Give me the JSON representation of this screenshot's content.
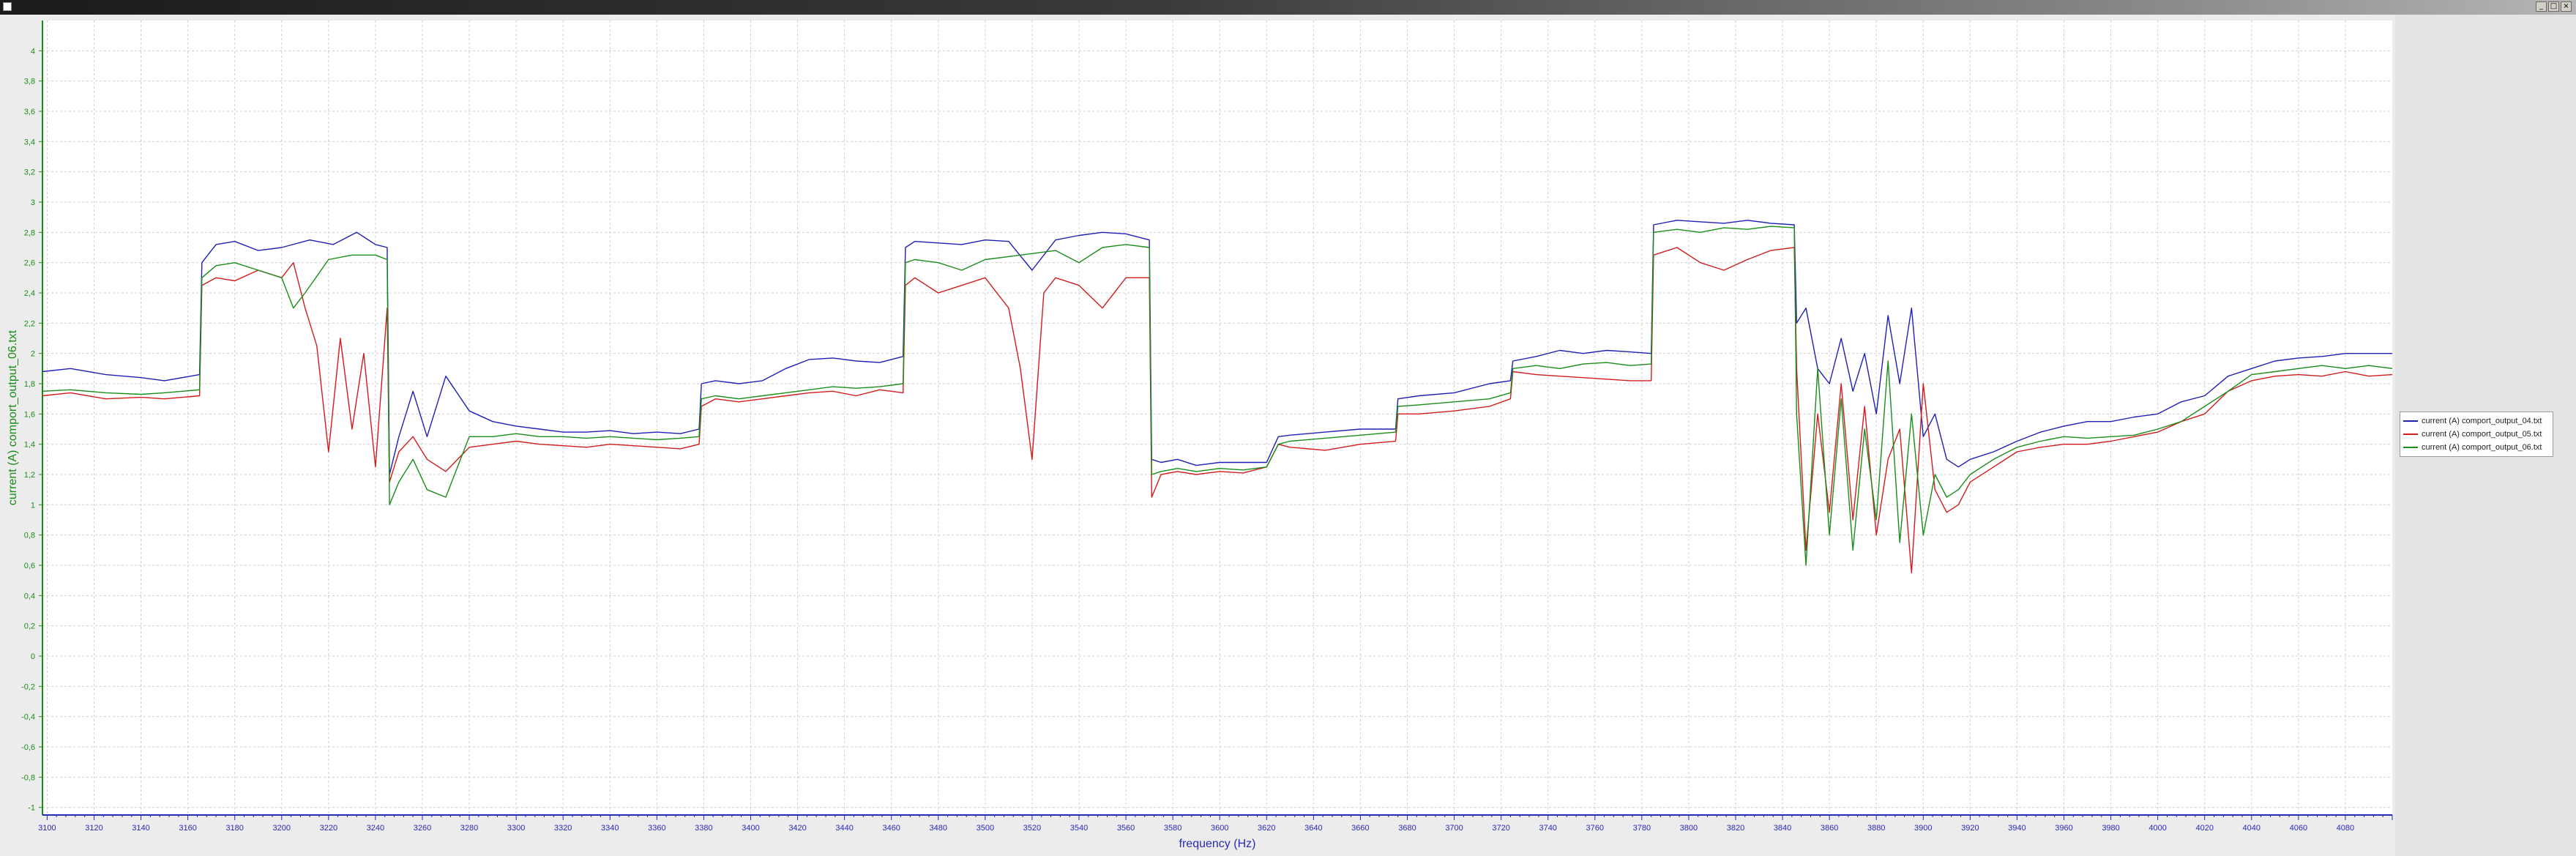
{
  "window": {
    "controls": {
      "minimize": "_",
      "maximize": "□",
      "close": "×"
    }
  },
  "chart_data": {
    "type": "line",
    "title": "",
    "xlabel": "frequency (Hz)",
    "ylabel": "current (A) comport_output_06.txt",
    "xlim": [
      3098,
      4100
    ],
    "ylim": [
      -1.05,
      4.2
    ],
    "xticks": [
      3100,
      3120,
      3140,
      3160,
      3180,
      3200,
      3220,
      3240,
      3260,
      3280,
      3300,
      3320,
      3340,
      3360,
      3380,
      3400,
      3420,
      3440,
      3460,
      3480,
      3500,
      3520,
      3540,
      3560,
      3580,
      3600,
      3620,
      3640,
      3660,
      3680,
      3700,
      3720,
      3740,
      3760,
      3780,
      3800,
      3820,
      3840,
      3860,
      3880,
      3900,
      3920,
      3940,
      3960,
      3980,
      4000,
      4020,
      4040,
      4060,
      4080
    ],
    "yticks": [
      -1,
      -0.8,
      -0.6,
      -0.4,
      -0.2,
      0,
      0.2,
      0.4,
      0.6,
      0.8,
      1,
      1.2,
      1.4,
      1.6,
      1.8,
      2,
      2.2,
      2.4,
      2.6,
      2.8,
      3,
      3.2,
      3.4,
      3.6,
      3.8,
      4
    ],
    "ytick_labels": [
      "-1",
      "-0,8",
      "-0,6",
      "-0,4",
      "-0,2",
      "0",
      "0,2",
      "0,4",
      "0,6",
      "0,8",
      "1",
      "1,2",
      "1,4",
      "1,6",
      "1,8",
      "2",
      "2,2",
      "2,4",
      "2,6",
      "2,8",
      "3",
      "3,2",
      "3,4",
      "3,6",
      "3,8",
      "4"
    ],
    "grid": true,
    "legend_position": "right",
    "series": [
      {
        "name": "current (A) comport_output_04.txt",
        "color": "#1f1fb4",
        "x": [
          3098,
          3110,
          3125,
          3140,
          3150,
          3165,
          3166,
          3172,
          3180,
          3190,
          3200,
          3212,
          3222,
          3232,
          3240,
          3245,
          3246,
          3250,
          3256,
          3262,
          3270,
          3280,
          3290,
          3300,
          3310,
          3320,
          3330,
          3340,
          3350,
          3360,
          3370,
          3378,
          3379,
          3385,
          3395,
          3405,
          3415,
          3425,
          3435,
          3445,
          3455,
          3465,
          3466,
          3470,
          3480,
          3490,
          3500,
          3510,
          3520,
          3530,
          3540,
          3550,
          3560,
          3570,
          3571,
          3575,
          3582,
          3590,
          3600,
          3610,
          3620,
          3625,
          3630,
          3645,
          3660,
          3675,
          3676,
          3685,
          3700,
          3715,
          3724,
          3725,
          3735,
          3745,
          3755,
          3765,
          3775,
          3784,
          3785,
          3795,
          3805,
          3815,
          3825,
          3835,
          3845,
          3846,
          3850,
          3855,
          3860,
          3865,
          3870,
          3875,
          3880,
          3885,
          3890,
          3895,
          3900,
          3905,
          3910,
          3915,
          3920,
          3930,
          3940,
          3950,
          3960,
          3970,
          3980,
          3990,
          4000,
          4010,
          4020,
          4030,
          4040,
          4050,
          4060,
          4070,
          4080,
          4090,
          4100
        ],
        "y": [
          1.88,
          1.9,
          1.86,
          1.84,
          1.82,
          1.86,
          2.6,
          2.72,
          2.74,
          2.68,
          2.7,
          2.75,
          2.72,
          2.8,
          2.72,
          2.7,
          1.2,
          1.45,
          1.75,
          1.45,
          1.85,
          1.62,
          1.55,
          1.52,
          1.5,
          1.48,
          1.48,
          1.49,
          1.47,
          1.48,
          1.47,
          1.5,
          1.8,
          1.82,
          1.8,
          1.82,
          1.9,
          1.96,
          1.97,
          1.95,
          1.94,
          1.98,
          2.7,
          2.74,
          2.73,
          2.72,
          2.75,
          2.74,
          2.55,
          2.75,
          2.78,
          2.8,
          2.79,
          2.75,
          1.3,
          1.28,
          1.3,
          1.26,
          1.28,
          1.28,
          1.28,
          1.45,
          1.46,
          1.48,
          1.5,
          1.5,
          1.7,
          1.72,
          1.74,
          1.8,
          1.82,
          1.95,
          1.98,
          2.02,
          2.0,
          2.02,
          2.01,
          2.0,
          2.85,
          2.88,
          2.87,
          2.86,
          2.88,
          2.86,
          2.85,
          2.2,
          2.3,
          1.9,
          1.8,
          2.1,
          1.75,
          2.0,
          1.6,
          2.25,
          1.8,
          2.3,
          1.45,
          1.6,
          1.3,
          1.25,
          1.3,
          1.35,
          1.42,
          1.48,
          1.52,
          1.55,
          1.55,
          1.58,
          1.6,
          1.68,
          1.72,
          1.85,
          1.9,
          1.95,
          1.97,
          1.98,
          2.0,
          2.0,
          2.0
        ]
      },
      {
        "name": "current (A) comport_output_05.txt",
        "color": "#d01c1c",
        "x": [
          3098,
          3110,
          3125,
          3140,
          3150,
          3165,
          3166,
          3172,
          3180,
          3190,
          3200,
          3205,
          3210,
          3215,
          3220,
          3225,
          3230,
          3235,
          3240,
          3245,
          3246,
          3250,
          3256,
          3262,
          3270,
          3280,
          3290,
          3300,
          3310,
          3320,
          3330,
          3340,
          3350,
          3360,
          3370,
          3378,
          3379,
          3385,
          3395,
          3405,
          3415,
          3425,
          3435,
          3445,
          3455,
          3465,
          3466,
          3470,
          3480,
          3490,
          3500,
          3510,
          3515,
          3520,
          3525,
          3530,
          3540,
          3550,
          3560,
          3570,
          3571,
          3575,
          3582,
          3590,
          3600,
          3610,
          3620,
          3625,
          3630,
          3645,
          3660,
          3675,
          3676,
          3685,
          3700,
          3715,
          3724,
          3725,
          3735,
          3745,
          3755,
          3765,
          3775,
          3784,
          3785,
          3795,
          3805,
          3815,
          3825,
          3835,
          3845,
          3846,
          3850,
          3855,
          3860,
          3865,
          3870,
          3875,
          3880,
          3885,
          3890,
          3895,
          3900,
          3905,
          3910,
          3915,
          3920,
          3930,
          3940,
          3950,
          3960,
          3970,
          3980,
          3990,
          4000,
          4010,
          4020,
          4030,
          4040,
          4050,
          4060,
          4070,
          4080,
          4090,
          4100
        ],
        "y": [
          1.72,
          1.74,
          1.7,
          1.71,
          1.7,
          1.72,
          2.45,
          2.5,
          2.48,
          2.55,
          2.5,
          2.6,
          2.3,
          2.05,
          1.35,
          2.1,
          1.5,
          2.0,
          1.25,
          2.3,
          1.15,
          1.35,
          1.45,
          1.3,
          1.22,
          1.38,
          1.4,
          1.42,
          1.4,
          1.39,
          1.38,
          1.4,
          1.39,
          1.38,
          1.37,
          1.4,
          1.65,
          1.7,
          1.68,
          1.7,
          1.72,
          1.74,
          1.75,
          1.72,
          1.76,
          1.74,
          2.45,
          2.5,
          2.4,
          2.45,
          2.5,
          2.3,
          1.9,
          1.3,
          2.4,
          2.5,
          2.45,
          2.3,
          2.5,
          2.5,
          1.05,
          1.2,
          1.22,
          1.2,
          1.22,
          1.21,
          1.25,
          1.4,
          1.38,
          1.36,
          1.4,
          1.42,
          1.6,
          1.6,
          1.62,
          1.65,
          1.7,
          1.88,
          1.86,
          1.85,
          1.84,
          1.83,
          1.82,
          1.82,
          2.65,
          2.7,
          2.6,
          2.55,
          2.62,
          2.68,
          2.7,
          1.9,
          0.7,
          1.6,
          0.95,
          1.8,
          0.9,
          1.65,
          0.8,
          1.3,
          1.5,
          0.55,
          1.8,
          1.1,
          0.95,
          1.0,
          1.15,
          1.25,
          1.35,
          1.38,
          1.4,
          1.4,
          1.42,
          1.45,
          1.48,
          1.55,
          1.6,
          1.75,
          1.82,
          1.85,
          1.86,
          1.85,
          1.88,
          1.85,
          1.86
        ]
      },
      {
        "name": "current (A) comport_output_06.txt",
        "color": "#1a8c1a",
        "x": [
          3098,
          3110,
          3125,
          3140,
          3150,
          3165,
          3166,
          3172,
          3180,
          3190,
          3200,
          3205,
          3210,
          3220,
          3230,
          3240,
          3245,
          3246,
          3250,
          3256,
          3262,
          3270,
          3280,
          3290,
          3300,
          3310,
          3320,
          3330,
          3340,
          3350,
          3360,
          3370,
          3378,
          3379,
          3385,
          3395,
          3405,
          3415,
          3425,
          3435,
          3445,
          3455,
          3465,
          3466,
          3470,
          3480,
          3490,
          3500,
          3510,
          3520,
          3530,
          3540,
          3550,
          3560,
          3570,
          3571,
          3575,
          3582,
          3590,
          3600,
          3610,
          3620,
          3625,
          3630,
          3645,
          3660,
          3675,
          3676,
          3685,
          3700,
          3715,
          3724,
          3725,
          3735,
          3745,
          3755,
          3765,
          3775,
          3784,
          3785,
          3795,
          3805,
          3815,
          3825,
          3835,
          3845,
          3846,
          3850,
          3855,
          3860,
          3865,
          3870,
          3875,
          3880,
          3885,
          3890,
          3895,
          3900,
          3905,
          3910,
          3915,
          3920,
          3930,
          3940,
          3950,
          3960,
          3970,
          3980,
          3990,
          4000,
          4010,
          4020,
          4030,
          4040,
          4050,
          4060,
          4070,
          4080,
          4090,
          4100
        ],
        "y": [
          1.75,
          1.76,
          1.74,
          1.73,
          1.74,
          1.76,
          2.5,
          2.58,
          2.6,
          2.55,
          2.5,
          2.3,
          2.4,
          2.62,
          2.65,
          2.65,
          2.62,
          1.0,
          1.15,
          1.3,
          1.1,
          1.05,
          1.45,
          1.45,
          1.47,
          1.45,
          1.45,
          1.44,
          1.45,
          1.44,
          1.43,
          1.44,
          1.45,
          1.7,
          1.72,
          1.7,
          1.72,
          1.74,
          1.76,
          1.78,
          1.77,
          1.78,
          1.8,
          2.6,
          2.62,
          2.6,
          2.55,
          2.62,
          2.64,
          2.66,
          2.68,
          2.6,
          2.7,
          2.72,
          2.7,
          1.2,
          1.22,
          1.24,
          1.22,
          1.24,
          1.23,
          1.25,
          1.4,
          1.42,
          1.44,
          1.46,
          1.48,
          1.65,
          1.66,
          1.68,
          1.7,
          1.74,
          1.9,
          1.92,
          1.9,
          1.93,
          1.94,
          1.92,
          1.93,
          2.8,
          2.82,
          2.8,
          2.83,
          2.82,
          2.84,
          2.83,
          1.6,
          0.6,
          1.9,
          0.8,
          1.7,
          0.7,
          1.5,
          0.9,
          1.95,
          0.75,
          1.6,
          0.8,
          1.2,
          1.05,
          1.1,
          1.2,
          1.3,
          1.38,
          1.42,
          1.45,
          1.44,
          1.45,
          1.46,
          1.5,
          1.55,
          1.65,
          1.75,
          1.86,
          1.88,
          1.9,
          1.92,
          1.9,
          1.92,
          1.9
        ]
      }
    ]
  }
}
